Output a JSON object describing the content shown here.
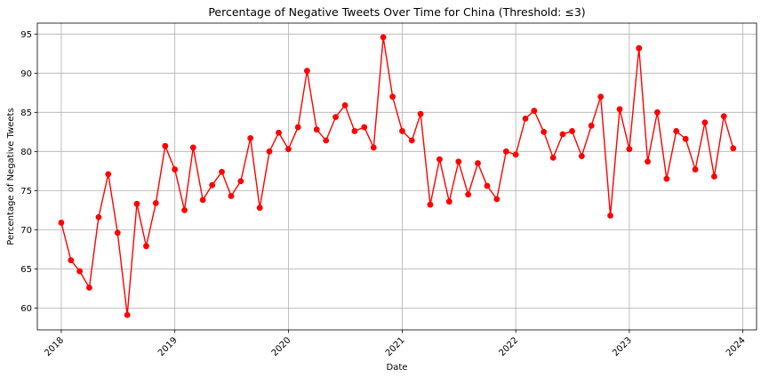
{
  "chart_data": {
    "type": "line",
    "title": "Percentage of Negative Tweets Over Time for China (Threshold: ≤3)",
    "xlabel": "Date",
    "ylabel": "Percentage of Negative Tweets",
    "x_ticks": [
      "2018",
      "2019",
      "2020",
      "2021",
      "2022",
      "2023",
      "2024"
    ],
    "y_ticks": [
      60,
      65,
      70,
      75,
      80,
      85,
      90,
      95
    ],
    "ylim": [
      57.2,
      96.4
    ],
    "xlim": [
      "2017-10-16",
      "2024-02-14"
    ],
    "grid": true,
    "line_color": "#ff0000",
    "marker_color": "#ff0000",
    "series": [
      {
        "x": [
          "2018-01-01",
          "2018-02-01",
          "2018-03-01",
          "2018-04-01",
          "2018-05-01",
          "2018-06-01",
          "2018-07-01",
          "2018-08-01",
          "2018-09-01",
          "2018-10-01",
          "2018-11-01",
          "2018-12-01",
          "2019-01-01",
          "2019-02-01",
          "2019-03-01",
          "2019-04-01",
          "2019-05-01",
          "2019-06-01",
          "2019-07-01",
          "2019-08-01",
          "2019-09-01",
          "2019-10-01",
          "2019-11-01",
          "2019-12-01",
          "2020-01-01",
          "2020-02-01",
          "2020-03-01",
          "2020-04-01",
          "2020-05-01",
          "2020-06-01",
          "2020-07-01",
          "2020-08-01",
          "2020-09-01",
          "2020-10-01",
          "2020-11-01",
          "2020-12-01",
          "2021-01-01",
          "2021-02-01",
          "2021-03-01",
          "2021-04-01",
          "2021-05-01",
          "2021-06-01",
          "2021-07-01",
          "2021-08-01",
          "2021-09-01",
          "2021-10-01",
          "2021-11-01",
          "2021-12-01",
          "2022-01-01",
          "2022-02-01",
          "2022-03-01",
          "2022-04-01",
          "2022-05-01",
          "2022-06-01",
          "2022-07-01",
          "2022-08-01",
          "2022-09-01",
          "2022-10-01",
          "2022-11-01",
          "2022-12-01",
          "2023-01-01",
          "2023-02-01",
          "2023-03-01",
          "2023-04-01",
          "2023-05-01",
          "2023-06-01",
          "2023-07-01",
          "2023-08-01",
          "2023-09-01",
          "2023-10-01",
          "2023-11-01",
          "2023-12-01"
        ],
        "values": [
          70.9,
          66.1,
          64.7,
          62.6,
          71.6,
          77.1,
          69.6,
          59.1,
          73.3,
          67.9,
          73.4,
          80.7,
          77.7,
          72.5,
          80.5,
          73.8,
          75.7,
          77.4,
          74.3,
          76.2,
          81.7,
          72.8,
          80.0,
          82.4,
          80.3,
          83.1,
          90.3,
          82.8,
          81.4,
          84.4,
          85.9,
          82.6,
          83.1,
          80.5,
          94.6,
          87.0,
          82.6,
          81.4,
          84.8,
          73.2,
          79.0,
          73.6,
          78.7,
          74.5,
          78.5,
          75.6,
          73.9,
          80.0,
          79.6,
          84.2,
          85.2,
          82.5,
          79.2,
          82.2,
          82.6,
          79.4,
          83.3,
          87.0,
          71.8,
          85.4,
          80.3,
          93.2,
          78.7,
          85.0,
          76.5,
          82.6,
          81.6,
          77.7,
          83.7,
          76.8,
          84.5,
          80.4
        ]
      }
    ]
  }
}
